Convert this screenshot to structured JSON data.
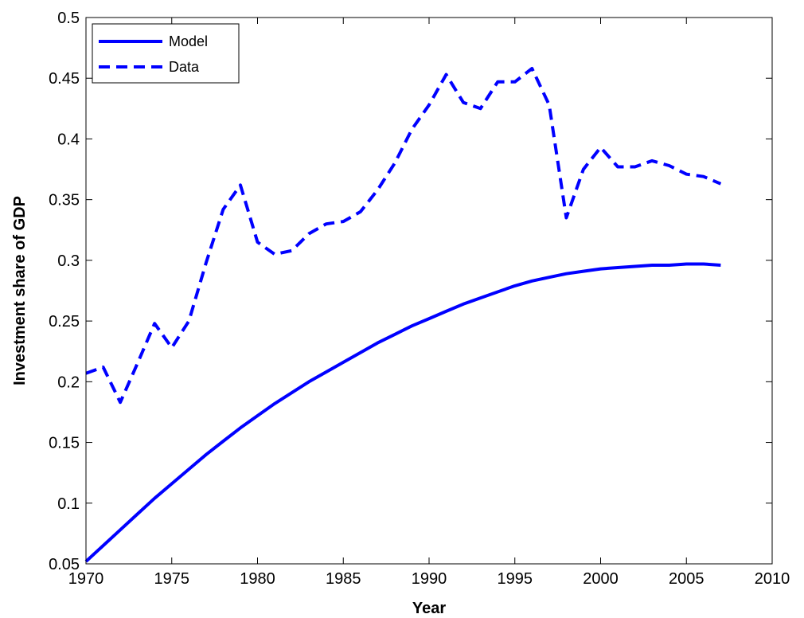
{
  "chart_data": {
    "type": "line",
    "xlabel": "Year",
    "ylabel": "Investment share of GDP",
    "xlim": [
      1970,
      2010
    ],
    "ylim": [
      0.05,
      0.5
    ],
    "xticks": [
      "1970",
      "1975",
      "1980",
      "1985",
      "1990",
      "1995",
      "2000",
      "2005",
      "2010"
    ],
    "yticks": [
      "0.05",
      "0.1",
      "0.15",
      "0.2",
      "0.25",
      "0.3",
      "0.35",
      "0.4",
      "0.45",
      "0.5"
    ],
    "grid": false,
    "legend_position": "top-left",
    "color": "#0000ff",
    "series": [
      {
        "name": "Model",
        "style": "solid",
        "x": [
          1970,
          1971,
          1972,
          1973,
          1974,
          1975,
          1976,
          1977,
          1978,
          1979,
          1980,
          1981,
          1982,
          1983,
          1984,
          1985,
          1986,
          1987,
          1988,
          1989,
          1990,
          1991,
          1992,
          1993,
          1994,
          1995,
          1996,
          1997,
          1998,
          1999,
          2000,
          2001,
          2002,
          2003,
          2004,
          2005,
          2006,
          2007
        ],
        "values": [
          0.052,
          0.065,
          0.078,
          0.091,
          0.104,
          0.116,
          0.128,
          0.14,
          0.151,
          0.162,
          0.172,
          0.182,
          0.191,
          0.2,
          0.208,
          0.216,
          0.224,
          0.232,
          0.239,
          0.246,
          0.252,
          0.258,
          0.264,
          0.269,
          0.274,
          0.279,
          0.283,
          0.286,
          0.289,
          0.291,
          0.293,
          0.294,
          0.295,
          0.296,
          0.296,
          0.297,
          0.297,
          0.296
        ]
      },
      {
        "name": "Data",
        "style": "dashed",
        "x": [
          1970,
          1971,
          1972,
          1973,
          1974,
          1975,
          1976,
          1977,
          1978,
          1979,
          1980,
          1981,
          1982,
          1983,
          1984,
          1985,
          1986,
          1987,
          1988,
          1989,
          1990,
          1991,
          1992,
          1993,
          1994,
          1995,
          1996,
          1997,
          1998,
          1999,
          2000,
          2001,
          2002,
          2003,
          2004,
          2005,
          2006,
          2007
        ],
        "values": [
          0.207,
          0.212,
          0.183,
          0.215,
          0.248,
          0.228,
          0.25,
          0.298,
          0.342,
          0.362,
          0.315,
          0.305,
          0.308,
          0.322,
          0.33,
          0.332,
          0.34,
          0.358,
          0.38,
          0.408,
          0.428,
          0.453,
          0.43,
          0.425,
          0.447,
          0.447,
          0.458,
          0.428,
          0.335,
          0.375,
          0.393,
          0.377,
          0.377,
          0.382,
          0.378,
          0.371,
          0.369,
          0.363
        ]
      }
    ]
  }
}
